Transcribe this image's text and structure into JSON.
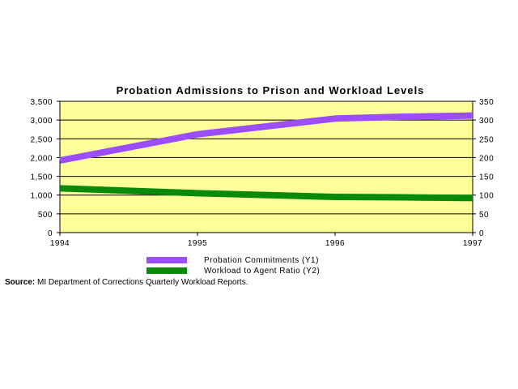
{
  "chart_data": {
    "type": "line",
    "title": "Probation Admissions to Prison and Workload Levels",
    "categories": [
      "1994",
      "1995",
      "1996",
      "1997"
    ],
    "x": [
      1994,
      1995,
      1996,
      1997
    ],
    "y1": {
      "min": 0,
      "max": 3500,
      "ticks": [
        "0",
        "500",
        "1,000",
        "1,500",
        "2,000",
        "2,500",
        "3,000",
        "3,500"
      ]
    },
    "y2": {
      "min": 0,
      "max": 350,
      "ticks": [
        "0",
        "50",
        "100",
        "150",
        "200",
        "250",
        "300",
        "350"
      ]
    },
    "series": [
      {
        "name": "Probation Commitments (Y1)",
        "axis": "y1",
        "color": "#9b4dff",
        "x": [
          1994,
          1995,
          1996,
          1996.5,
          1997
        ],
        "values": [
          1920,
          2620,
          3040,
          3090,
          3120
        ]
      },
      {
        "name": "Workload to Agent Ratio (Y2)",
        "axis": "y2",
        "color": "#0a8a0a",
        "x": [
          1994,
          1995,
          1996,
          1996.5,
          1997
        ],
        "values": [
          118,
          105,
          95,
          94,
          92
        ]
      }
    ],
    "plot_background": "#ffff99",
    "grid": true,
    "legend": "bottom"
  },
  "source": {
    "label": "Source:",
    "text": "MI Department of Corrections Quarterly Workload Reports."
  }
}
